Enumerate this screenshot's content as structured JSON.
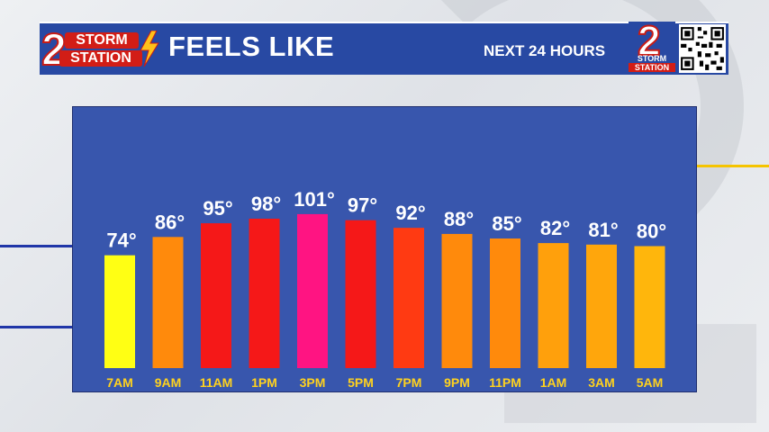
{
  "header": {
    "logo_storm": "STORM",
    "logo_station": "STATION",
    "logo_number": "2",
    "title": "FEELS LIKE",
    "subtitle": "NEXT 24 HOURS",
    "right_logo_number": "2",
    "right_logo_storm": "STORM",
    "right_logo_station": "STATION"
  },
  "colors": {
    "header_bg": "#2849a3",
    "chart_bg": "#3856ad",
    "tick_color": "#ffd21e",
    "logo_red": "#d21d16"
  },
  "chart_data": {
    "type": "bar",
    "title": "FEELS LIKE",
    "categories": [
      "7AM",
      "9AM",
      "11AM",
      "1PM",
      "3PM",
      "5PM",
      "7PM",
      "9PM",
      "11PM",
      "1AM",
      "3AM",
      "5AM"
    ],
    "values": [
      74,
      86,
      95,
      98,
      101,
      97,
      92,
      88,
      85,
      82,
      81,
      80
    ],
    "data_labels": [
      "74°",
      "86°",
      "95°",
      "98°",
      "101°",
      "97°",
      "92°",
      "88°",
      "85°",
      "82°",
      "81°",
      "80°"
    ],
    "bar_colors": [
      "#ffff14",
      "#ff8a0c",
      "#f51818",
      "#f51818",
      "#ff1482",
      "#f51818",
      "#ff3a12",
      "#ff8a0c",
      "#ff8a0c",
      "#ffa00c",
      "#ffa60c",
      "#ffb60c"
    ],
    "ylim": [
      0,
      101
    ],
    "grid": false,
    "legend": "none"
  }
}
